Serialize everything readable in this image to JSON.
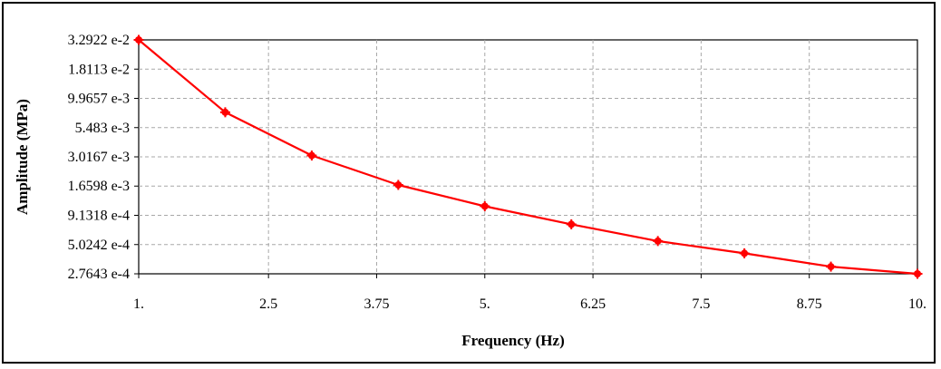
{
  "chart_data": {
    "type": "line",
    "xlabel": "Frequency (Hz)",
    "ylabel": "Amplitude (MPa)",
    "scale_y": "log",
    "xlim": [
      1,
      10
    ],
    "ylim": [
      0.00027643,
      0.032922
    ],
    "x_ticks": [
      {
        "value": 1,
        "label": "1."
      },
      {
        "value": 2.5,
        "label": "2.5"
      },
      {
        "value": 3.75,
        "label": "3.75"
      },
      {
        "value": 5,
        "label": "5."
      },
      {
        "value": 6.25,
        "label": "6.25"
      },
      {
        "value": 7.5,
        "label": "7.5"
      },
      {
        "value": 8.75,
        "label": "8.75"
      },
      {
        "value": 10,
        "label": "10."
      }
    ],
    "y_ticks": [
      {
        "value": 0.032922,
        "label": "3.2922 e-2"
      },
      {
        "value": 0.018113,
        "label": "1.8113 e-2"
      },
      {
        "value": 0.0099657,
        "label": "9.9657 e-3"
      },
      {
        "value": 0.005483,
        "label": "5.483 e-3"
      },
      {
        "value": 0.0030167,
        "label": "3.0167 e-3"
      },
      {
        "value": 0.0016598,
        "label": "1.6598 e-3"
      },
      {
        "value": 0.00091318,
        "label": "9.1318 e-4"
      },
      {
        "value": 0.00050242,
        "label": "5.0242 e-4"
      },
      {
        "value": 0.00027643,
        "label": "2.7643 e-4"
      }
    ],
    "grid": true,
    "series": [
      {
        "color": "#ff0000",
        "x": [
          1,
          2,
          3,
          4,
          5,
          6,
          7,
          8,
          9,
          10
        ],
        "y": [
          0.032922,
          0.0075,
          0.0031,
          0.0017,
          0.0011,
          0.00076,
          0.00054,
          0.00042,
          0.00032,
          0.00027643
        ]
      }
    ]
  }
}
